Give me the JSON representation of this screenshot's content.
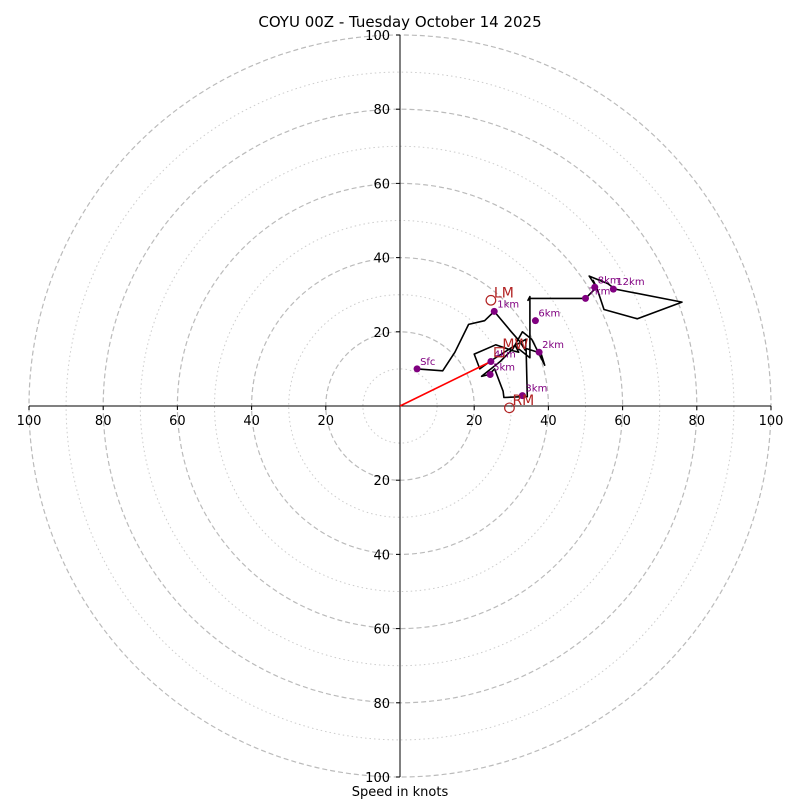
{
  "chart_data": {
    "type": "hodograph",
    "title": "COYU 00Z - Tuesday October 14 2025",
    "xlabel": "Speed in knots",
    "units": "knots",
    "axis_range": [
      -100,
      100
    ],
    "ring_major": [
      20,
      40,
      60,
      80,
      100
    ],
    "ring_minor": [
      10,
      30,
      50,
      70,
      90
    ],
    "x_ticks": [
      {
        "value": -100,
        "label": "100"
      },
      {
        "value": -80,
        "label": "80"
      },
      {
        "value": -60,
        "label": "60"
      },
      {
        "value": -40,
        "label": "40"
      },
      {
        "value": -20,
        "label": "20"
      },
      {
        "value": 20,
        "label": "20"
      },
      {
        "value": 40,
        "label": "40"
      },
      {
        "value": 60,
        "label": "60"
      },
      {
        "value": 80,
        "label": "80"
      },
      {
        "value": 100,
        "label": "100"
      }
    ],
    "y_ticks": [
      {
        "value": 100,
        "label": "100"
      },
      {
        "value": 80,
        "label": "80"
      },
      {
        "value": 60,
        "label": "60"
      },
      {
        "value": 40,
        "label": "40"
      },
      {
        "value": 20,
        "label": "20"
      },
      {
        "value": -20,
        "label": "20"
      },
      {
        "value": -40,
        "label": "40"
      },
      {
        "value": -60,
        "label": "60"
      },
      {
        "value": -80,
        "label": "80"
      },
      {
        "value": -100,
        "label": "100"
      }
    ],
    "hodograph": {
      "color": "#000000",
      "u": [
        4.6,
        11.5,
        14.8,
        18.5,
        22.8,
        25.4,
        30.0,
        32.2,
        33.8,
        34.0,
        30.5,
        24.2,
        21.5,
        20.0,
        25.8,
        30.2,
        33.0,
        35.5,
        39.0,
        38.0,
        34.0,
        34.3,
        33.0,
        28.0,
        27.8,
        25.5,
        24.0,
        22.0,
        27.0,
        30.0,
        32.0,
        31.2,
        35.0,
        35.0,
        34.5,
        34.8,
        50.0,
        52.0,
        53.0,
        51.0,
        56.0,
        58.0,
        76.0,
        64.0,
        55.0,
        53.0,
        52.0
      ],
      "v": [
        10.0,
        9.5,
        14.5,
        22.0,
        23.0,
        25.5,
        20.0,
        17.5,
        15.0,
        18.0,
        16.0,
        12.0,
        10.0,
        14.0,
        16.5,
        15.0,
        20.0,
        18.0,
        11.0,
        14.2,
        15.5,
        2.5,
        2.5,
        2.3,
        4.0,
        10.0,
        8.5,
        8.0,
        12.0,
        15.0,
        14.5,
        16.0,
        13.0,
        29.5,
        28.5,
        29.0,
        29.0,
        31.0,
        32.0,
        35.0,
        33.0,
        31.5,
        28.0,
        23.5,
        26.0,
        32.0,
        34.0
      ]
    },
    "height_markers": [
      {
        "label": "Sfc",
        "u": 4.6,
        "v": 10.0
      },
      {
        "label": "1km",
        "u": 25.4,
        "v": 25.5
      },
      {
        "label": "2km",
        "u": 37.5,
        "v": 14.5
      },
      {
        "label": "3km",
        "u": 33.0,
        "v": 2.8
      },
      {
        "label": "4km",
        "u": 24.5,
        "v": 12.0
      },
      {
        "label": "5km",
        "u": 24.3,
        "v": 8.5
      },
      {
        "label": "6km",
        "u": 36.5,
        "v": 23.0
      },
      {
        "label": "7km",
        "u": 50.0,
        "v": 29.0
      },
      {
        "label": "8km",
        "u": 52.5,
        "v": 32.0
      },
      {
        "label": "12km",
        "u": 57.5,
        "v": 31.5
      }
    ],
    "motion_markers": [
      {
        "label": "LM",
        "u": 24.5,
        "v": 28.5,
        "shape": "circle"
      },
      {
        "label": "MW",
        "u": 26.8,
        "v": 14.5,
        "shape": "square"
      },
      {
        "label": "RM",
        "u": 29.5,
        "v": -0.5,
        "shape": "circle"
      }
    ],
    "storm_vector": {
      "u": 24.5,
      "v": 12.0,
      "color": "#ff0000"
    },
    "colors": {
      "height_marker": "#800080",
      "motion_marker": "#b22222",
      "grid": "#bbbbbb",
      "axis": "#000000"
    }
  }
}
